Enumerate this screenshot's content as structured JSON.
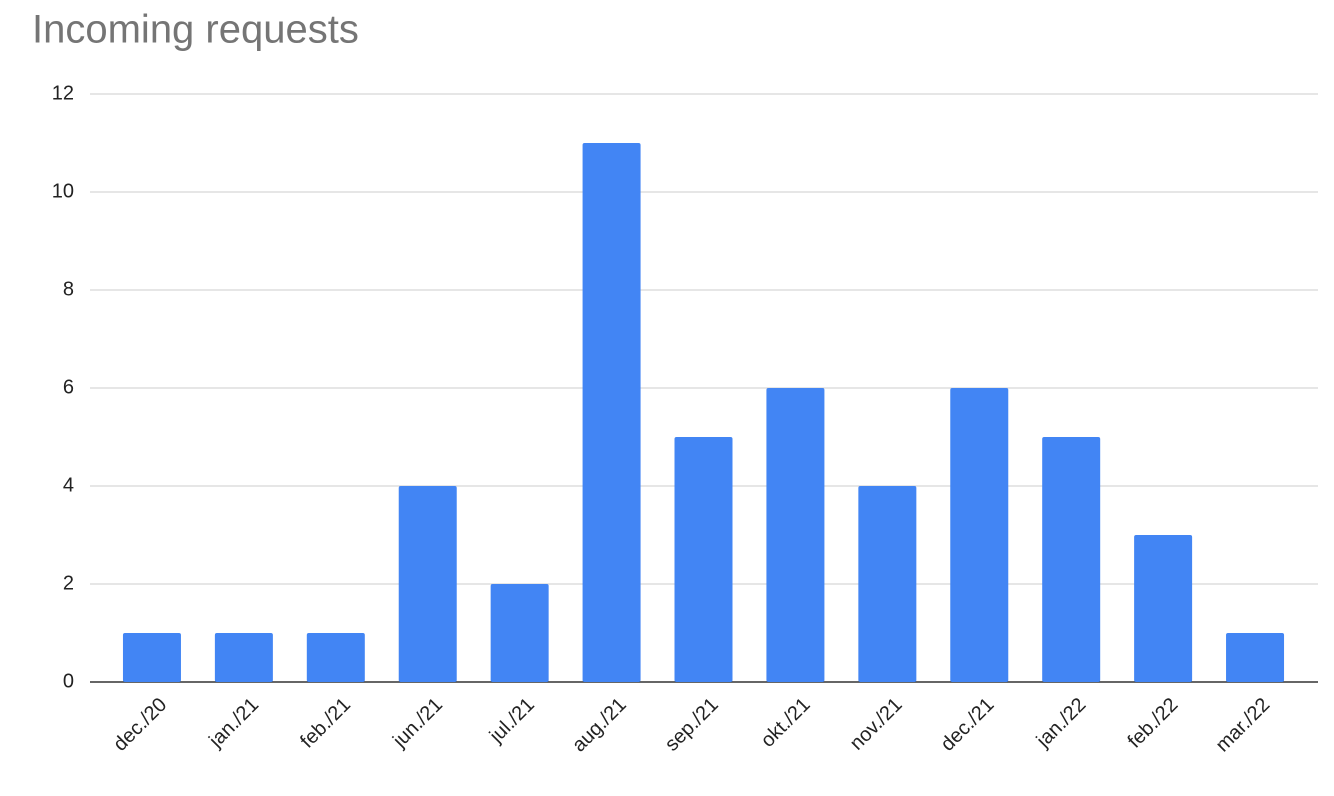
{
  "chart_data": {
    "type": "bar",
    "title": "Incoming requests",
    "categories": [
      "dec./20",
      "jan./21",
      "feb./21",
      "jun./21",
      "jul./21",
      "aug./21",
      "sep./21",
      "okt./21",
      "nov./21",
      "dec./21",
      "jan./22",
      "feb./22",
      "mar./22"
    ],
    "values": [
      1,
      1,
      1,
      4,
      2,
      11,
      5,
      6,
      4,
      6,
      5,
      3,
      1
    ],
    "color": "#4285f4",
    "ylim": [
      0,
      12
    ],
    "yticks": [
      0,
      2,
      4,
      6,
      8,
      10,
      12
    ],
    "grid": true
  }
}
